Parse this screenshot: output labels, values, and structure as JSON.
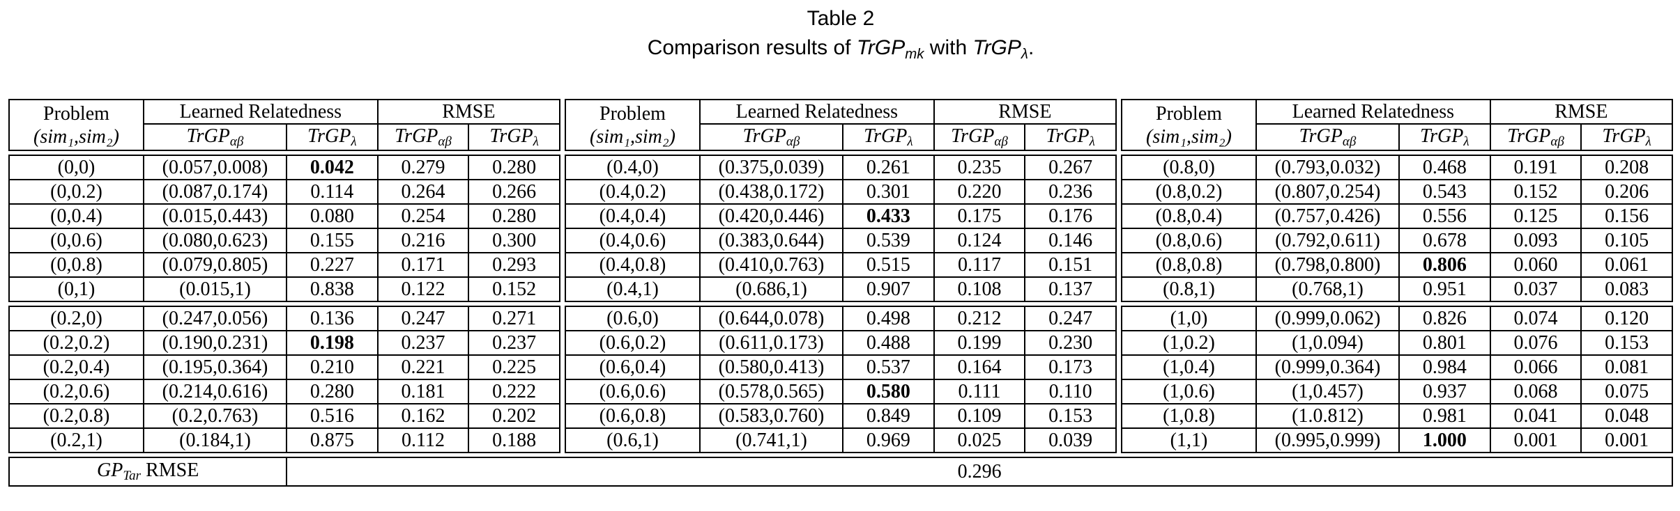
{
  "title": "Table 2",
  "subtitle": {
    "prefix": "Comparison results of ",
    "trgp": "TrGP",
    "sub_mk": "mk",
    "middle": " with ",
    "sub_lambda": "λ",
    "suffix": "."
  },
  "header": {
    "problem": "Problem",
    "problem_sub": "(sim₁,sim₂)",
    "relatedness": "Learned Relatedness",
    "rmse": "RMSE",
    "trgp": "TrGP",
    "sub_alphabeta": "αβ",
    "sub_lambda": "λ"
  },
  "groups": [
    {
      "rows": [
        {
          "problem": "(0,0)",
          "rel_ab": "(0.057,0.008)",
          "rel_l": "0.042",
          "bold": true,
          "rmse_ab": "0.279",
          "rmse_l": "0.280"
        },
        {
          "problem": "(0,0.2)",
          "rel_ab": "(0.087,0.174)",
          "rel_l": "0.114",
          "bold": false,
          "rmse_ab": "0.264",
          "rmse_l": "0.266"
        },
        {
          "problem": "(0,0.4)",
          "rel_ab": "(0.015,0.443)",
          "rel_l": "0.080",
          "bold": false,
          "rmse_ab": "0.254",
          "rmse_l": "0.280"
        },
        {
          "problem": "(0,0.6)",
          "rel_ab": "(0.080,0.623)",
          "rel_l": "0.155",
          "bold": false,
          "rmse_ab": "0.216",
          "rmse_l": "0.300"
        },
        {
          "problem": "(0,0.8)",
          "rel_ab": "(0.079,0.805)",
          "rel_l": "0.227",
          "bold": false,
          "rmse_ab": "0.171",
          "rmse_l": "0.293"
        },
        {
          "problem": "(0,1)",
          "rel_ab": "(0.015,1)",
          "rel_l": "0.838",
          "bold": false,
          "rmse_ab": "0.122",
          "rmse_l": "0.152"
        },
        {
          "problem": "(0.2,0)",
          "rel_ab": "(0.247,0.056)",
          "rel_l": "0.136",
          "bold": false,
          "rmse_ab": "0.247",
          "rmse_l": "0.271"
        },
        {
          "problem": "(0.2,0.2)",
          "rel_ab": "(0.190,0.231)",
          "rel_l": "0.198",
          "bold": true,
          "rmse_ab": "0.237",
          "rmse_l": "0.237"
        },
        {
          "problem": "(0.2,0.4)",
          "rel_ab": "(0.195,0.364)",
          "rel_l": "0.210",
          "bold": false,
          "rmse_ab": "0.221",
          "rmse_l": "0.225"
        },
        {
          "problem": "(0.2,0.6)",
          "rel_ab": "(0.214,0.616)",
          "rel_l": "0.280",
          "bold": false,
          "rmse_ab": "0.181",
          "rmse_l": "0.222"
        },
        {
          "problem": "(0.2,0.8)",
          "rel_ab": "(0.2,0.763)",
          "rel_l": "0.516",
          "bold": false,
          "rmse_ab": "0.162",
          "rmse_l": "0.202"
        },
        {
          "problem": "(0.2,1)",
          "rel_ab": "(0.184,1)",
          "rel_l": "0.875",
          "bold": false,
          "rmse_ab": "0.112",
          "rmse_l": "0.188"
        }
      ]
    },
    {
      "rows": [
        {
          "problem": "(0.4,0)",
          "rel_ab": "(0.375,0.039)",
          "rel_l": "0.261",
          "bold": false,
          "rmse_ab": "0.235",
          "rmse_l": "0.267"
        },
        {
          "problem": "(0.4,0.2)",
          "rel_ab": "(0.438,0.172)",
          "rel_l": "0.301",
          "bold": false,
          "rmse_ab": "0.220",
          "rmse_l": "0.236"
        },
        {
          "problem": "(0.4,0.4)",
          "rel_ab": "(0.420,0.446)",
          "rel_l": "0.433",
          "bold": true,
          "rmse_ab": "0.175",
          "rmse_l": "0.176"
        },
        {
          "problem": "(0.4,0.6)",
          "rel_ab": "(0.383,0.644)",
          "rel_l": "0.539",
          "bold": false,
          "rmse_ab": "0.124",
          "rmse_l": "0.146"
        },
        {
          "problem": "(0.4,0.8)",
          "rel_ab": "(0.410,0.763)",
          "rel_l": "0.515",
          "bold": false,
          "rmse_ab": "0.117",
          "rmse_l": "0.151"
        },
        {
          "problem": "(0.4,1)",
          "rel_ab": "(0.686,1)",
          "rel_l": "0.907",
          "bold": false,
          "rmse_ab": "0.108",
          "rmse_l": "0.137"
        },
        {
          "problem": "(0.6,0)",
          "rel_ab": "(0.644,0.078)",
          "rel_l": "0.498",
          "bold": false,
          "rmse_ab": "0.212",
          "rmse_l": "0.247"
        },
        {
          "problem": "(0.6,0.2)",
          "rel_ab": "(0.611,0.173)",
          "rel_l": "0.488",
          "bold": false,
          "rmse_ab": "0.199",
          "rmse_l": "0.230"
        },
        {
          "problem": "(0.6,0.4)",
          "rel_ab": "(0.580,0.413)",
          "rel_l": "0.537",
          "bold": false,
          "rmse_ab": "0.164",
          "rmse_l": "0.173"
        },
        {
          "problem": "(0.6,0.6)",
          "rel_ab": "(0.578,0.565)",
          "rel_l": "0.580",
          "bold": true,
          "rmse_ab": "0.111",
          "rmse_l": "0.110"
        },
        {
          "problem": "(0.6,0.8)",
          "rel_ab": "(0.583,0.760)",
          "rel_l": "0.849",
          "bold": false,
          "rmse_ab": "0.109",
          "rmse_l": "0.153"
        },
        {
          "problem": "(0.6,1)",
          "rel_ab": "(0.741,1)",
          "rel_l": "0.969",
          "bold": false,
          "rmse_ab": "0.025",
          "rmse_l": "0.039"
        }
      ]
    },
    {
      "rows": [
        {
          "problem": "(0.8,0)",
          "rel_ab": "(0.793,0.032)",
          "rel_l": "0.468",
          "bold": false,
          "rmse_ab": "0.191",
          "rmse_l": "0.208"
        },
        {
          "problem": "(0.8,0.2)",
          "rel_ab": "(0.807,0.254)",
          "rel_l": "0.543",
          "bold": false,
          "rmse_ab": "0.152",
          "rmse_l": "0.206"
        },
        {
          "problem": "(0.8,0.4)",
          "rel_ab": "(0.757,0.426)",
          "rel_l": "0.556",
          "bold": false,
          "rmse_ab": "0.125",
          "rmse_l": "0.156"
        },
        {
          "problem": "(0.8,0.6)",
          "rel_ab": "(0.792,0.611)",
          "rel_l": "0.678",
          "bold": false,
          "rmse_ab": "0.093",
          "rmse_l": "0.105"
        },
        {
          "problem": "(0.8,0.8)",
          "rel_ab": "(0.798,0.800)",
          "rel_l": "0.806",
          "bold": true,
          "rmse_ab": "0.060",
          "rmse_l": "0.061"
        },
        {
          "problem": "(0.8,1)",
          "rel_ab": "(0.768,1)",
          "rel_l": "0.951",
          "bold": false,
          "rmse_ab": "0.037",
          "rmse_l": "0.083"
        },
        {
          "problem": "(1,0)",
          "rel_ab": "(0.999,0.062)",
          "rel_l": "0.826",
          "bold": false,
          "rmse_ab": "0.074",
          "rmse_l": "0.120"
        },
        {
          "problem": "(1,0.2)",
          "rel_ab": "(1,0.094)",
          "rel_l": "0.801",
          "bold": false,
          "rmse_ab": "0.076",
          "rmse_l": "0.153"
        },
        {
          "problem": "(1,0.4)",
          "rel_ab": "(0.999,0.364)",
          "rel_l": "0.984",
          "bold": false,
          "rmse_ab": "0.066",
          "rmse_l": "0.081"
        },
        {
          "problem": "(1,0.6)",
          "rel_ab": "(1,0.457)",
          "rel_l": "0.937",
          "bold": false,
          "rmse_ab": "0.068",
          "rmse_l": "0.075"
        },
        {
          "problem": "(1,0.8)",
          "rel_ab": "(1.0.812)",
          "rel_l": "0.981",
          "bold": false,
          "rmse_ab": "0.041",
          "rmse_l": "0.048"
        },
        {
          "problem": "(1,1)",
          "rel_ab": "(0.995,0.999)",
          "rel_l": "1.000",
          "bold": true,
          "rmse_ab": "0.001",
          "rmse_l": "0.001"
        }
      ]
    }
  ],
  "footer": {
    "gp": "GP",
    "gp_sub": "Tar",
    "label_rest": " RMSE",
    "value": "0.296"
  }
}
